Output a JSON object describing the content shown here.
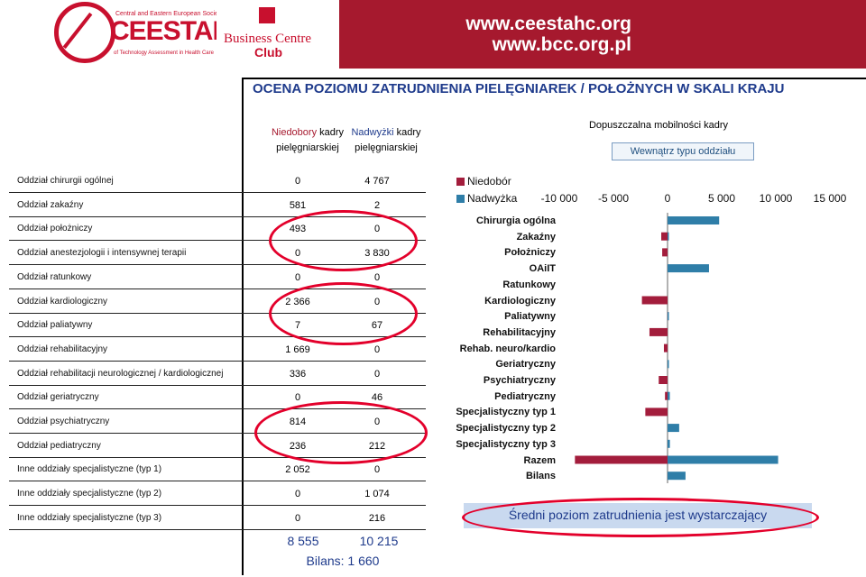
{
  "header": {
    "logo_cee": "Central and Eastern European Society",
    "logo_main": "CEESTAHC",
    "logo_tagline": "of Technology Assessment in Health Care",
    "bcc_line1": "Business Centre",
    "bcc_line2": "Club",
    "url1": "www.ceestahc.org",
    "url2": "www.bcc.org.pl",
    "brand_color": "#a6192e"
  },
  "title": "OCENA POZIOMU ZATRUDNIENIA PIELĘGNIAREK / POŁOŻNYCH W SKALI KRAJU",
  "columns": {
    "col1_a": "Niedobory",
    "col1_b": " kadry",
    "col1_c": "pielęgniarskiej",
    "col2_a": "Nadwyżki",
    "col2_b": " kadry",
    "col2_c": "pielęgniarskiej"
  },
  "mobility": {
    "label": "Dopuszczalna mobilności kadry",
    "box": "Wewnątrz typu oddziału"
  },
  "rows": [
    {
      "label": "Oddział chirurgii ogólnej",
      "v1": "0",
      "v2": "4 767"
    },
    {
      "label": "Oddział zakaźny",
      "v1": "581",
      "v2": "2"
    },
    {
      "label": "Oddział położniczy",
      "v1": "493",
      "v2": "0"
    },
    {
      "label": "Oddział anestezjologii i intensywnej terapii",
      "v1": "0",
      "v2": "3 830"
    },
    {
      "label": "Oddział ratunkowy",
      "v1": "0",
      "v2": "0"
    },
    {
      "label": "Oddział kardiologiczny",
      "v1": "2 366",
      "v2": "0"
    },
    {
      "label": "Oddział paliatywny",
      "v1": "7",
      "v2": "67"
    },
    {
      "label": "Oddział rehabilitacyjny",
      "v1": "1 669",
      "v2": "0"
    },
    {
      "label": "Oddział rehabilitacji neurologicznej / kardiologicznej",
      "v1": "336",
      "v2": "0"
    },
    {
      "label": "Oddział geriatryczny",
      "v1": "0",
      "v2": "46"
    },
    {
      "label": "Oddział psychiatryczny",
      "v1": "814",
      "v2": "0"
    },
    {
      "label": "Oddział pediatryczny",
      "v1": "236",
      "v2": "212"
    },
    {
      "label": "Inne oddziały specjalistyczne (typ 1)",
      "v1": "2 052",
      "v2": "0"
    },
    {
      "label": "Inne oddziały specjalistyczne (typ 2)",
      "v1": "0",
      "v2": "1 074"
    },
    {
      "label": "Inne oddziały specjalistyczne (typ 3)",
      "v1": "0",
      "v2": "216"
    }
  ],
  "totals": {
    "v1": "8 555",
    "v2": "10 215",
    "bilans": "Bilans: 1 660"
  },
  "chart_data": {
    "type": "bar",
    "orientation": "horizontal",
    "categories": [
      "Chirurgia ogólna",
      "Zakaźny",
      "Położniczy",
      "OAiIT",
      "Ratunkowy",
      "Kardiologiczny",
      "Paliatywny",
      "Rehabilitacyjny",
      "Rehab. neuro/kardio",
      "Geriatryczny",
      "Psychiatryczny",
      "Pediatryczny",
      "Specjalistyczny typ 1",
      "Specjalistyczny typ 2",
      "Specjalistyczny typ 3",
      "Razem",
      "Bilans"
    ],
    "series": [
      {
        "name": "Niedobór",
        "color": "#a31d3c",
        "values": [
          0,
          -581,
          -493,
          0,
          0,
          -2366,
          -7,
          -1669,
          -336,
          0,
          -814,
          -236,
          -2052,
          0,
          0,
          -8555,
          0
        ]
      },
      {
        "name": "Nadwyżka",
        "color": "#2f7ea8",
        "values": [
          4767,
          2,
          0,
          3830,
          0,
          0,
          67,
          0,
          0,
          46,
          0,
          212,
          0,
          1074,
          216,
          10215,
          1660
        ]
      }
    ],
    "xlim": [
      -10000,
      15000
    ],
    "xticks": [
      "-10 000",
      "-5 000",
      "0",
      "5 000",
      "10 000",
      "15 000"
    ],
    "legend": "top-left"
  },
  "footer_note": "Średni poziom zatrudnienia jest wystarczający"
}
